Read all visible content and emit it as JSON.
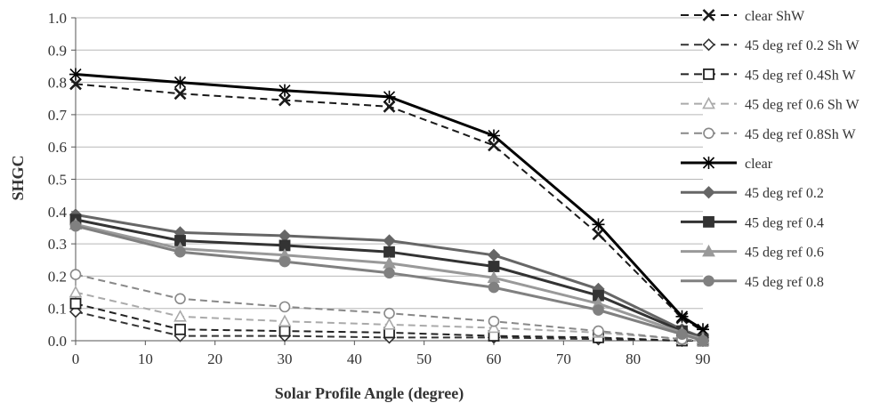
{
  "chart_data": {
    "type": "line",
    "title": "",
    "xlabel": "Solar Profile Angle (degree)",
    "ylabel": "SHGC",
    "xlim": [
      0,
      90
    ],
    "ylim": [
      0,
      1.0
    ],
    "xticks": [
      0,
      10,
      20,
      30,
      40,
      50,
      60,
      70,
      80,
      90
    ],
    "yticks": [
      0,
      0.1,
      0.2,
      0.3,
      0.4,
      0.5,
      0.6,
      0.7,
      0.8,
      0.9,
      1.0
    ],
    "xtick_labels": [
      "0",
      "10",
      "20",
      "30",
      "40",
      "50",
      "60",
      "70",
      "80",
      "90"
    ],
    "ytick_labels": [
      "0.0",
      "0.1",
      "0.2",
      "0.3",
      "0.4",
      "0.5",
      "0.6",
      "0.7",
      "0.8",
      "0.9",
      "1.0"
    ],
    "grid": "horizontal",
    "legend_position": "right",
    "x": [
      0,
      15,
      30,
      45,
      60,
      75,
      87,
      90
    ],
    "series": [
      {
        "name": "clear ShW",
        "values": [
          0.795,
          0.765,
          0.745,
          0.725,
          0.605,
          0.33,
          0.07,
          0.03
        ],
        "color": "#1a1a1a",
        "dash": "dashed",
        "marker": "x"
      },
      {
        "name": "45 deg ref 0.2 Sh W",
        "values": [
          0.09,
          0.015,
          0.015,
          0.01,
          0.01,
          0.005,
          0.0,
          0.0
        ],
        "color": "#333333",
        "dash": "dashed",
        "marker": "diamond-open"
      },
      {
        "name": "45 deg ref 0.4Sh W",
        "values": [
          0.115,
          0.035,
          0.03,
          0.025,
          0.015,
          0.01,
          0.0,
          0.0
        ],
        "color": "#222222",
        "dash": "dashed",
        "marker": "square-open"
      },
      {
        "name": "45 deg ref 0.6 Sh W",
        "values": [
          0.15,
          0.075,
          0.06,
          0.05,
          0.04,
          0.025,
          0.005,
          0.0
        ],
        "color": "#aaaaaa",
        "dash": "dashed",
        "marker": "triangle-open"
      },
      {
        "name": "45 deg ref 0.8Sh W",
        "values": [
          0.205,
          0.13,
          0.105,
          0.085,
          0.06,
          0.03,
          0.005,
          0.0
        ],
        "color": "#888888",
        "dash": "dashed",
        "marker": "circle-open"
      },
      {
        "name": "clear",
        "values": [
          0.825,
          0.8,
          0.775,
          0.755,
          0.635,
          0.36,
          0.075,
          0.035
        ],
        "color": "#000000",
        "dash": "solid",
        "marker": "star"
      },
      {
        "name": "45 deg ref 0.2",
        "values": [
          0.39,
          0.335,
          0.325,
          0.31,
          0.265,
          0.16,
          0.035,
          0.01
        ],
        "color": "#666666",
        "dash": "solid",
        "marker": "diamond"
      },
      {
        "name": "45 deg ref 0.4",
        "values": [
          0.375,
          0.31,
          0.295,
          0.275,
          0.23,
          0.14,
          0.03,
          0.005
        ],
        "color": "#333333",
        "dash": "solid",
        "marker": "square"
      },
      {
        "name": "45 deg ref 0.6",
        "values": [
          0.36,
          0.285,
          0.265,
          0.24,
          0.195,
          0.115,
          0.025,
          0.005
        ],
        "color": "#999999",
        "dash": "solid",
        "marker": "triangle"
      },
      {
        "name": "45 deg ref 0.8",
        "values": [
          0.355,
          0.275,
          0.245,
          0.21,
          0.165,
          0.095,
          0.02,
          0.0
        ],
        "color": "#808080",
        "dash": "solid",
        "marker": "circle"
      }
    ]
  }
}
